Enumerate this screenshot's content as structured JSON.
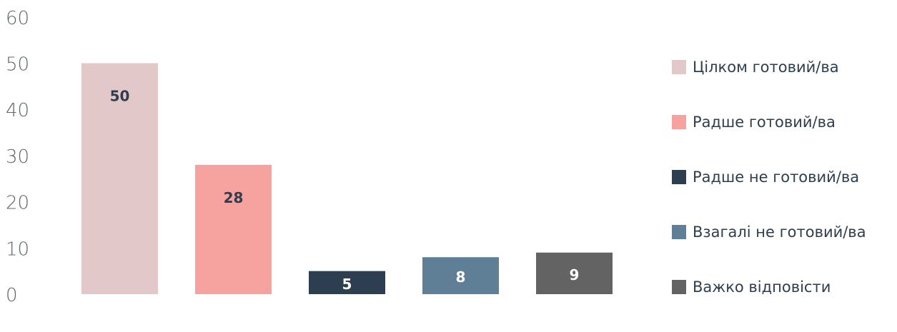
{
  "chart_data": {
    "type": "bar",
    "categories": [
      "Цілком готовий/ва",
      "Радше готовий/ва",
      "Радше не готовий/ва",
      "Взагалі не готовий/ва",
      "Важко відповісти"
    ],
    "values": [
      50,
      28,
      5,
      8,
      9
    ],
    "data_labels": [
      "50",
      "28",
      "5",
      "8",
      "9"
    ],
    "colors": [
      "#e3c8c9",
      "#f6a3a0",
      "#2c3e50",
      "#5e7f96",
      "#636363"
    ],
    "label_colors": [
      "#2c3e50",
      "#2c3e50",
      "#ffffff",
      "#ffffff",
      "#ffffff"
    ],
    "ylim": [
      0,
      60
    ],
    "yticks": [
      "0",
      "10",
      "20",
      "30",
      "40",
      "50",
      "60"
    ],
    "grid": false,
    "legend_position": "right"
  }
}
